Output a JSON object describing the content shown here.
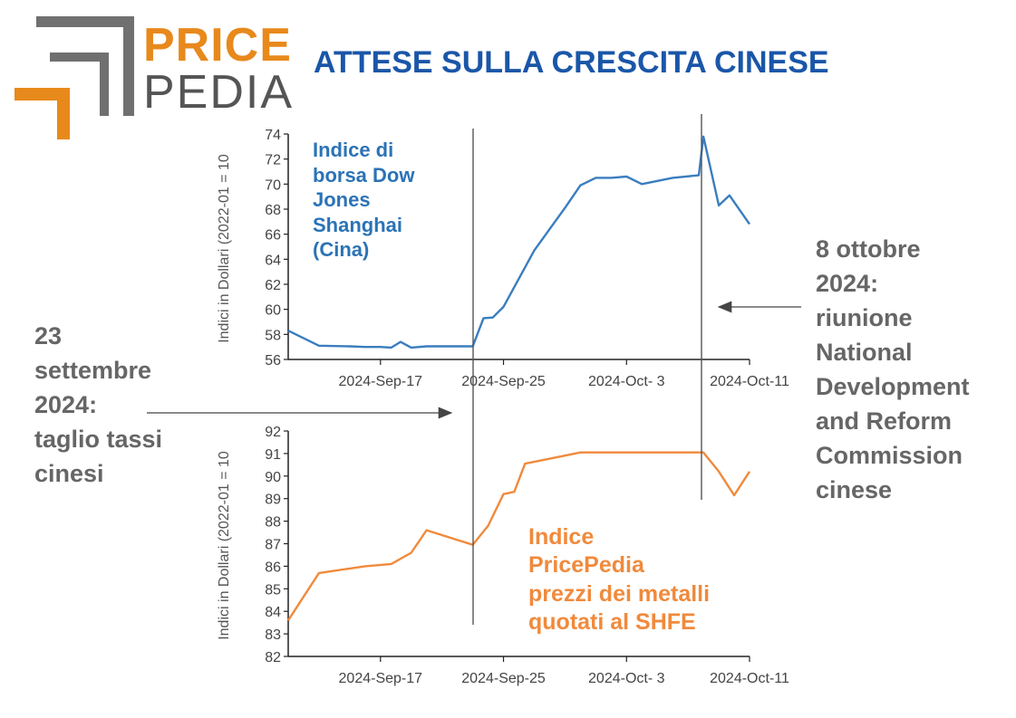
{
  "logo": {
    "word1": "PRICE",
    "word2": "PEDIA",
    "colors": {
      "orange": "#e8891c",
      "gray": "#707070"
    }
  },
  "title": "ATTESE SULLA CRESCITA CINESE",
  "annotations": {
    "left": [
      "23",
      "settembre",
      "2024:",
      "taglio tassi",
      "cinesi"
    ],
    "right": [
      "8 ottobre",
      "2024:",
      "riunione",
      "National",
      "Development",
      "and Reform",
      "Commission",
      "cinese"
    ]
  },
  "chart_data": [
    {
      "type": "line",
      "label_lines": [
        "Indice di",
        "borsa Dow",
        "Jones",
        "Shanghai",
        "(Cina)"
      ],
      "ylabel": "Indici in Dollari (2022-01 = 10",
      "ylim": [
        56,
        74
      ],
      "yticks": [
        56,
        58,
        60,
        62,
        64,
        66,
        68,
        70,
        72,
        74
      ],
      "xlim": [
        0,
        30
      ],
      "xtick_positions": [
        6,
        14,
        22,
        30
      ],
      "xtick_labels": [
        "2024-Sep-17",
        "2024-Sep-25",
        "2024-Oct- 3",
        "2024-Oct-11"
      ],
      "color": "#3a7dbf",
      "x": [
        0,
        2,
        4,
        5,
        6,
        6.7,
        7.3,
        8,
        9,
        10.6,
        12,
        12.7,
        13.3,
        14,
        16,
        17,
        18,
        19,
        20,
        21,
        22,
        23,
        25,
        26.7,
        27,
        28,
        28.7,
        30
      ],
      "y": [
        58.3,
        57.1,
        57.05,
        57.0,
        57.0,
        56.95,
        57.4,
        56.95,
        57.05,
        57.05,
        57.05,
        59.3,
        59.35,
        60.2,
        64.7,
        66.4,
        68.1,
        69.9,
        70.5,
        70.5,
        70.6,
        70.0,
        70.5,
        70.7,
        73.8,
        68.3,
        69.1,
        66.8
      ]
    },
    {
      "type": "line",
      "label_lines": [
        "Indice",
        "PricePedia",
        "prezzi dei metalli",
        "quotati al SHFE"
      ],
      "ylabel": "Indici in Dollari (2022-01 = 10",
      "ylim": [
        82,
        92
      ],
      "yticks": [
        82,
        83,
        84,
        85,
        86,
        87,
        88,
        89,
        90,
        91,
        92
      ],
      "xlim": [
        0,
        30
      ],
      "xtick_positions": [
        6,
        14,
        22,
        30
      ],
      "xtick_labels": [
        "2024-Sep-17",
        "2024-Sep-25",
        "2024-Oct- 3",
        "2024-Oct-11"
      ],
      "color": "#f08a3c",
      "x": [
        0,
        2,
        4,
        5,
        6.7,
        8,
        9,
        12,
        13,
        14,
        14.7,
        15.4,
        19,
        21,
        23,
        26.7,
        27,
        28,
        29,
        30
      ],
      "y": [
        83.6,
        85.7,
        85.9,
        86.0,
        86.1,
        86.6,
        87.6,
        86.95,
        87.8,
        89.2,
        89.3,
        90.55,
        91.05,
        91.05,
        91.05,
        91.05,
        91.05,
        90.2,
        89.15,
        90.2
      ]
    }
  ],
  "events": {
    "rate_cut_x": 12,
    "ndrc_x": 26.7
  }
}
